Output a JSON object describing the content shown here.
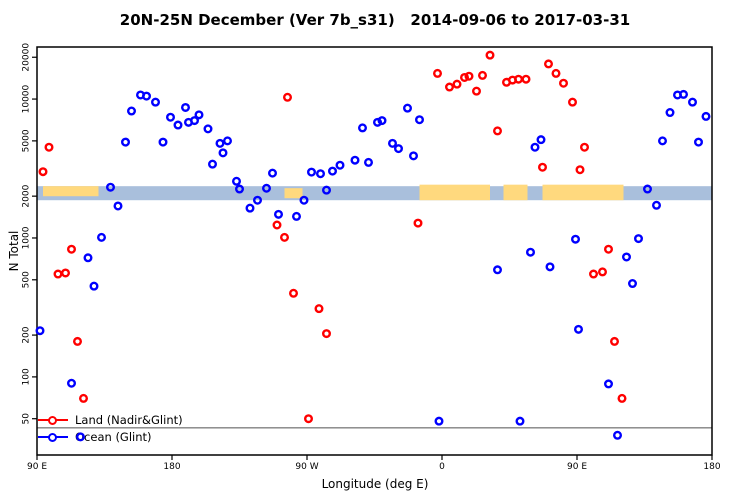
{
  "chart_data": {
    "type": "scatter",
    "title": "20N-25N December (Ver 7b_s31)   2014-09-06 to 2017-03-31",
    "xlabel": "Longitude (deg E)",
    "ylabel": "N Total",
    "y_scale": "log",
    "grid": false,
    "legend_position": "bottom-left",
    "y_ticks": [
      50,
      100,
      200,
      500,
      1000,
      2000,
      5000,
      10000,
      20000
    ],
    "y_tick_labels": [
      "50",
      "100",
      "200",
      "500",
      "1000",
      "2000",
      "5000",
      "10000",
      "20000"
    ],
    "y_domain": [
      27.4,
      23700
    ],
    "x_ticks": [
      {
        "label": "90 E",
        "deg": 90
      },
      {
        "label": "180",
        "deg": 180
      },
      {
        "label": "90 W",
        "deg": 270
      },
      {
        "label": "0",
        "deg": 360
      },
      {
        "label": "90 E",
        "deg": 450
      },
      {
        "label": "180",
        "deg": 540
      }
    ],
    "x_range_deg": [
      90,
      540
    ],
    "reference_line": {
      "n": 43,
      "color": "#808080"
    },
    "surface_band": {
      "n_top": 2360,
      "n_bottom": 1870,
      "ocean_color": "#A9BFDC",
      "land_color": "#FFD97E",
      "segments": [
        {
          "from": 90,
          "to": 94,
          "type": "ocean"
        },
        {
          "from": 94,
          "to": 131,
          "type": "land",
          "extent": "upper"
        },
        {
          "from": 131,
          "to": 255,
          "type": "ocean"
        },
        {
          "from": 255,
          "to": 267,
          "type": "land",
          "extent": "mid"
        },
        {
          "from": 267,
          "to": 345,
          "type": "ocean"
        },
        {
          "from": 345,
          "to": 392,
          "type": "land",
          "extent": "full"
        },
        {
          "from": 392,
          "to": 401,
          "type": "ocean"
        },
        {
          "from": 401,
          "to": 417,
          "type": "land",
          "extent": "full"
        },
        {
          "from": 417,
          "to": 427,
          "type": "ocean"
        },
        {
          "from": 427,
          "to": 481,
          "type": "land",
          "extent": "full"
        },
        {
          "from": 481,
          "to": 540,
          "type": "ocean"
        }
      ]
    },
    "point_format": [
      "lon_deg",
      "n"
    ],
    "series": [
      {
        "name": "Land (Nadir&Glint)",
        "color": "#FF0000",
        "points": [
          [
            98,
            4500
          ],
          [
            94,
            3000
          ],
          [
            104,
            550
          ],
          [
            109,
            560
          ],
          [
            113,
            830
          ],
          [
            117,
            180
          ],
          [
            121,
            70
          ],
          [
            257,
            10300
          ],
          [
            250,
            1240
          ],
          [
            255,
            1010
          ],
          [
            261,
            400
          ],
          [
            271,
            50
          ],
          [
            278,
            310
          ],
          [
            283,
            205
          ],
          [
            344,
            1280
          ],
          [
            357,
            15300
          ],
          [
            365,
            12200
          ],
          [
            370,
            12800
          ],
          [
            375,
            14300
          ],
          [
            378,
            14600
          ],
          [
            383,
            11400
          ],
          [
            387,
            14800
          ],
          [
            392,
            20700
          ],
          [
            397,
            5900
          ],
          [
            403,
            13200
          ],
          [
            407,
            13700
          ],
          [
            411,
            13900
          ],
          [
            416,
            13900
          ],
          [
            431,
            17900
          ],
          [
            436,
            15300
          ],
          [
            441,
            13000
          ],
          [
            447,
            9500
          ],
          [
            455,
            4500
          ],
          [
            427,
            3230
          ],
          [
            452,
            3100
          ],
          [
            461,
            550
          ],
          [
            467,
            570
          ],
          [
            471,
            830
          ],
          [
            475,
            180
          ],
          [
            480,
            70
          ]
        ]
      },
      {
        "name": "Ocean (Glint)",
        "color": "#0000FF",
        "points": [
          [
            139,
            2320
          ],
          [
            144,
            1700
          ],
          [
            133,
            1010
          ],
          [
            124,
            720
          ],
          [
            128,
            450
          ],
          [
            113,
            90
          ],
          [
            119,
            37
          ],
          [
            92,
            215
          ],
          [
            149,
            4900
          ],
          [
            153,
            8200
          ],
          [
            159,
            10700
          ],
          [
            163,
            10500
          ],
          [
            169,
            9500
          ],
          [
            179,
            7400
          ],
          [
            184,
            6500
          ],
          [
            189,
            8700
          ],
          [
            191,
            6800
          ],
          [
            195,
            7000
          ],
          [
            198,
            7700
          ],
          [
            204,
            6100
          ],
          [
            174,
            4900
          ],
          [
            212,
            4800
          ],
          [
            217,
            5000
          ],
          [
            214,
            4100
          ],
          [
            207,
            3400
          ],
          [
            223,
            2560
          ],
          [
            225,
            2250
          ],
          [
            232,
            1640
          ],
          [
            237,
            1870
          ],
          [
            243,
            2280
          ],
          [
            247,
            2930
          ],
          [
            251,
            1480
          ],
          [
            263,
            1430
          ],
          [
            268,
            1870
          ],
          [
            273,
            2980
          ],
          [
            279,
            2900
          ],
          [
            283,
            2210
          ],
          [
            287,
            3030
          ],
          [
            292,
            3340
          ],
          [
            302,
            3630
          ],
          [
            311,
            3500
          ],
          [
            307,
            6200
          ],
          [
            317,
            6800
          ],
          [
            320,
            7000
          ],
          [
            327,
            4800
          ],
          [
            331,
            4400
          ],
          [
            337,
            8600
          ],
          [
            341,
            3900
          ],
          [
            345,
            7100
          ],
          [
            358,
            48
          ],
          [
            397,
            590
          ],
          [
            412,
            48
          ],
          [
            419,
            790
          ],
          [
            422,
            4500
          ],
          [
            426,
            5100
          ],
          [
            432,
            620
          ],
          [
            449,
            980
          ],
          [
            451,
            220
          ],
          [
            471,
            89
          ],
          [
            477,
            38
          ],
          [
            483,
            730
          ],
          [
            487,
            470
          ],
          [
            491,
            990
          ],
          [
            497,
            2250
          ],
          [
            503,
            1720
          ],
          [
            507,
            5000
          ],
          [
            512,
            8000
          ],
          [
            517,
            10700
          ],
          [
            521,
            10800
          ],
          [
            527,
            9500
          ],
          [
            531,
            4900
          ],
          [
            536,
            7500
          ]
        ]
      }
    ]
  }
}
